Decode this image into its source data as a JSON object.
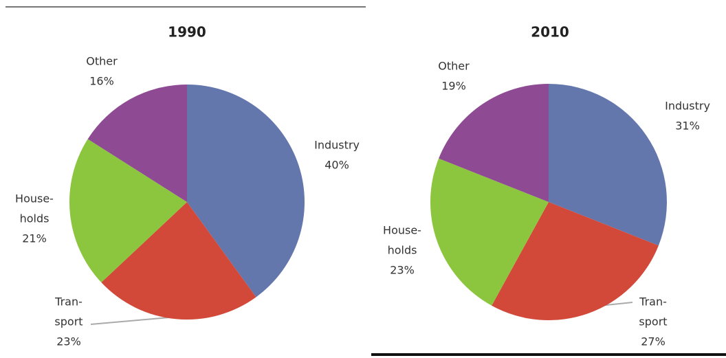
{
  "chart_data": [
    {
      "type": "pie",
      "title": "1990",
      "categories": [
        [
          "Industry"
        ],
        [
          "Tran-",
          "sport"
        ],
        [
          "House-",
          "holds"
        ],
        [
          "Other"
        ]
      ],
      "values": [
        40,
        23,
        21,
        16
      ],
      "value_labels": [
        "40%",
        "23%",
        "21%",
        "16%"
      ],
      "colors": [
        "#6477ad",
        "#d2493a",
        "#8cc63f",
        "#8e4b94"
      ]
    },
    {
      "type": "pie",
      "title": "2010",
      "categories": [
        [
          "Industry"
        ],
        [
          "Tran-",
          "sport"
        ],
        [
          "House-",
          "holds"
        ],
        [
          "Other"
        ]
      ],
      "values": [
        31,
        27,
        23,
        19
      ],
      "value_labels": [
        "31%",
        "27%",
        "23%",
        "19%"
      ],
      "colors": [
        "#6477ad",
        "#d2493a",
        "#8cc63f",
        "#8e4b94"
      ]
    }
  ]
}
